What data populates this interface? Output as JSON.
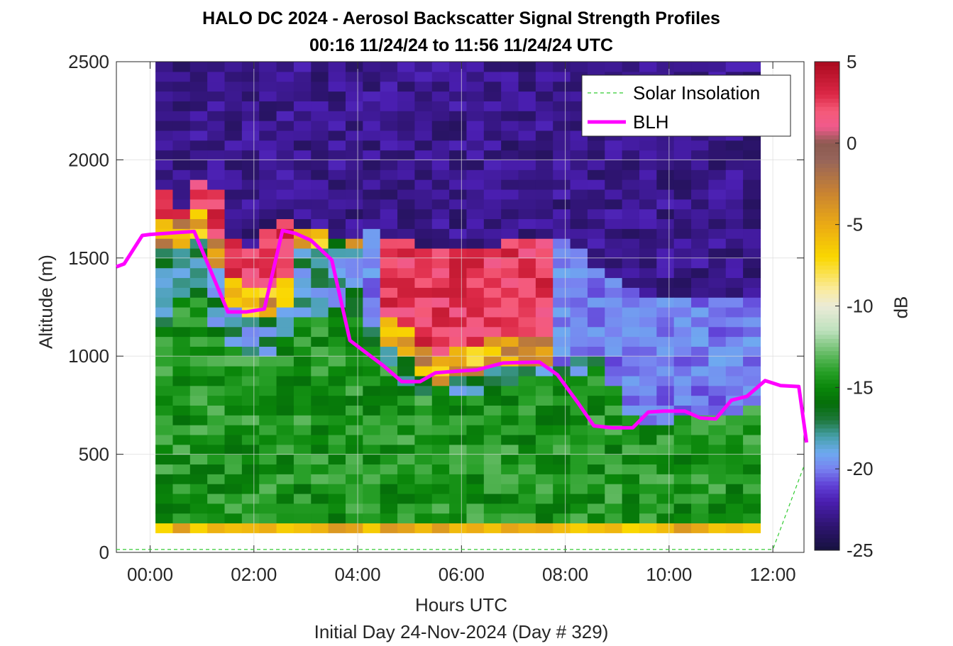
{
  "chart_data": {
    "type": "heatmap",
    "title": "HALO DC 2024 - Aerosol Backscatter Signal Strength Profiles",
    "subtitle": "00:16 11/24/24 to 11:56 11/24/24  UTC",
    "xlabel": "Hours UTC",
    "xsublabel": "Initial Day 24-Nov-2024 (Day # 329)",
    "ylabel": "Altitude (m)",
    "colorbar_label": "dB",
    "xlim": [
      -0.65,
      12.6
    ],
    "ylim": [
      0,
      2500
    ],
    "x_ticks": [
      "00:00",
      "02:00",
      "04:00",
      "06:00",
      "08:00",
      "10:00",
      "12:00"
    ],
    "x_tick_values": [
      0,
      2,
      4,
      6,
      8,
      10,
      12
    ],
    "y_ticks": [
      "0",
      "500",
      "1000",
      "1500",
      "2000",
      "2500"
    ],
    "y_tick_values": [
      0,
      500,
      1000,
      1500,
      2000,
      2500
    ],
    "colorbar_ticks": [
      "5",
      "0",
      "-5",
      "-10",
      "-15",
      "-20",
      "-25"
    ],
    "colorbar_tick_values": [
      5,
      0,
      -5,
      -10,
      -15,
      -20,
      -25
    ],
    "clim": [
      -25,
      5
    ],
    "grid": true,
    "legend_position": "top-right",
    "legend": [
      "Solar Insolation",
      "BLH"
    ],
    "heatmap": {
      "x_start": 0.27,
      "x_step": 0.333,
      "columns": 35,
      "altitude_bins_m": [
        100,
        150,
        200,
        250,
        300,
        350,
        400,
        450,
        500,
        550,
        600,
        650,
        700,
        750,
        800,
        850,
        900,
        950,
        1000,
        1050,
        1100,
        1150,
        1200,
        1250,
        1300,
        1350,
        1400,
        1450,
        1500,
        1550,
        1600,
        1650,
        1700,
        1750,
        1800,
        1850,
        1900,
        1950,
        2000,
        2050,
        2100,
        2150,
        2200,
        2250,
        2300,
        2350,
        2400,
        2450,
        2500
      ],
      "profile_shape_per_column": [
        [
          1.57,
          1.83,
          1.13
        ],
        [
          1.54,
          1.74,
          1.3
        ],
        [
          1.6,
          1.92,
          1.3
        ],
        [
          1.45,
          1.85,
          1.15
        ],
        [
          1.25,
          1.6,
          1.05
        ],
        [
          1.21,
          1.55,
          1.0
        ],
        [
          1.22,
          1.67,
          1.0
        ],
        [
          1.25,
          1.7,
          1.1
        ],
        [
          1.55,
          1.67,
          1.2
        ],
        [
          1.55,
          1.67,
          1.2
        ],
        [
          1.6,
          1.6,
          1.25
        ],
        [
          1.55,
          1.6,
          1.2
        ],
        [
          1.2,
          1.65,
          1.05
        ],
        [
          1.05,
          1.6,
          0.95
        ],
        [
          1.0,
          1.6,
          0.85
        ],
        [
          0.92,
          1.55,
          0.8
        ],
        [
          0.87,
          1.55,
          0.85
        ],
        [
          0.88,
          1.55,
          0.8
        ],
        [
          0.92,
          1.55,
          0.8
        ],
        [
          0.93,
          1.55,
          0.85
        ],
        [
          0.93,
          1.6,
          0.85
        ],
        [
          0.95,
          1.6,
          0.9
        ],
        [
          0.96,
          1.6,
          0.9
        ],
        [
          0.96,
          1.6,
          0.9
        ],
        [
          0.98,
          1.55,
          0.9
        ],
        [
          0.98,
          1.45,
          0.95
        ],
        [
          0.85,
          1.4,
          0.95
        ],
        [
          0.7,
          1.35,
          0.95
        ],
        [
          0.64,
          1.3,
          0.95
        ],
        [
          0.64,
          1.3,
          0.95
        ],
        [
          0.7,
          1.3,
          1.0
        ],
        [
          0.72,
          1.3,
          1.05
        ],
        [
          0.72,
          1.3,
          1.1
        ],
        [
          0.68,
          1.3,
          1.15
        ],
        [
          0.75,
          1.3,
          1.2
        ]
      ],
      "near_surface_dB": -6
    },
    "series": [
      {
        "name": "BLH",
        "color": "#ff00ff",
        "x": [
          -0.65,
          -0.5,
          -0.15,
          0.0,
          0.55,
          0.85,
          1.5,
          1.85,
          2.2,
          2.55,
          2.8,
          3.1,
          3.5,
          3.85,
          4.5,
          4.85,
          5.2,
          5.5,
          6.0,
          6.3,
          6.8,
          7.5,
          7.85,
          8.25,
          8.55,
          8.9,
          9.3,
          9.6,
          9.9,
          10.3,
          10.6,
          10.9,
          11.2,
          11.5,
          11.85,
          12.15,
          12.5,
          12.65
        ],
        "y": [
          1455,
          1470,
          1615,
          1620,
          1630,
          1635,
          1225,
          1225,
          1240,
          1640,
          1625,
          1590,
          1490,
          1080,
          950,
          870,
          870,
          915,
          925,
          930,
          965,
          970,
          905,
          760,
          645,
          635,
          635,
          715,
          720,
          720,
          685,
          680,
          775,
          795,
          875,
          850,
          845,
          560
        ]
      },
      {
        "name": "Solar Insolation",
        "color": "#33cc33",
        "x": [
          -0.65,
          12.0,
          12.6
        ],
        "y": [
          15,
          15,
          440
        ]
      }
    ]
  }
}
